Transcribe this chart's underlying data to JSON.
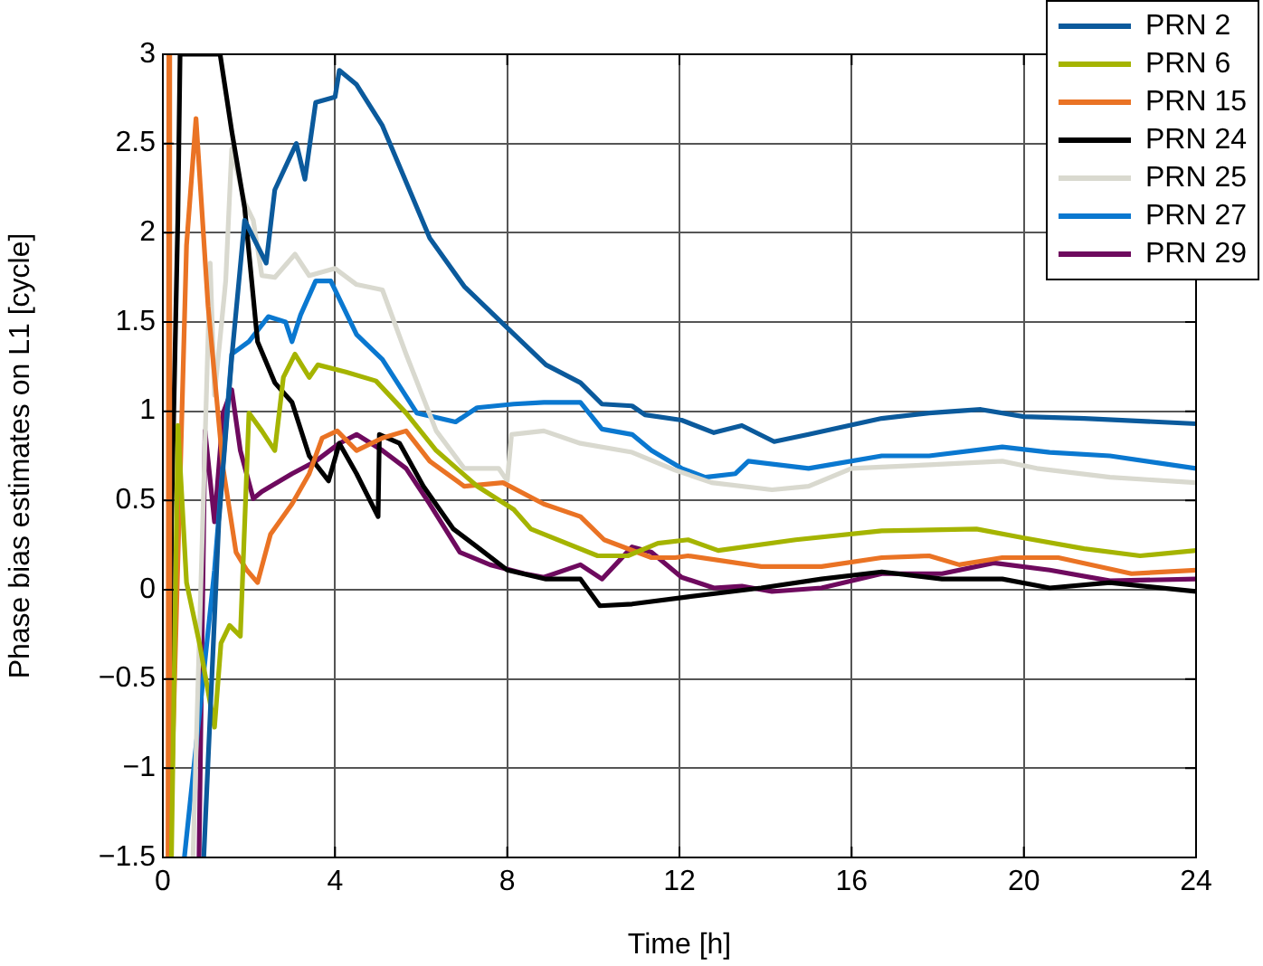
{
  "chart_data": {
    "type": "line",
    "xlabel": "Time [h]",
    "ylabel": "Phase bias estimates on L1 [cycle]",
    "xlim": [
      0,
      24
    ],
    "xticks": [
      0,
      4,
      8,
      12,
      16,
      20,
      24
    ],
    "ylim": [
      -1.5,
      3
    ],
    "yticks": [
      {
        "value": -1.5,
        "label": "−1.5"
      },
      {
        "value": -1,
        "label": "−1"
      },
      {
        "value": -0.5,
        "label": "−0.5"
      },
      0,
      0.5,
      1,
      1.5,
      2,
      2.5,
      3
    ],
    "grid": true,
    "legend": "top right",
    "marker": "none",
    "line_style": "solid",
    "series": [
      {
        "name": "PRN 2",
        "color": "#0b5a9c",
        "x": [
          0.95,
          1.3,
          1.6,
          1.9,
          2.4,
          2.6,
          3.1,
          3.3,
          3.55,
          4,
          4.1,
          4.5,
          5.1,
          6.2,
          7,
          7.9,
          8.9,
          9.7,
          10.2,
          10.9,
          11.2,
          12.05,
          12.8,
          13.45,
          14.2,
          15,
          16.7,
          17.8,
          19,
          20,
          21.4,
          24
        ],
        "values": [
          -1.5,
          0.38,
          1.3,
          2.07,
          1.83,
          2.24,
          2.5,
          2.3,
          2.73,
          2.76,
          2.91,
          2.83,
          2.6,
          1.97,
          1.7,
          1.49,
          1.26,
          1.16,
          1.04,
          1.03,
          0.98,
          0.95,
          0.88,
          0.92,
          0.83,
          0.87,
          0.96,
          0.99,
          1.01,
          0.97,
          0.96,
          0.93
        ]
      },
      {
        "name": "PRN 6",
        "color": "#a5b400",
        "x": [
          0.2,
          0.35,
          0.55,
          0.85,
          1.2,
          1.35,
          1.55,
          1.8,
          2.0,
          2.3,
          2.6,
          2.8,
          3.07,
          3.4,
          3.6,
          4.25,
          4.95,
          5.65,
          6.35,
          7.3,
          8.15,
          8.55,
          10.1,
          10.8,
          11.5,
          12.2,
          12.9,
          14.7,
          16.7,
          18.9,
          20,
          21.4,
          22.7,
          24
        ],
        "values": [
          -1.5,
          0.92,
          0.04,
          -0.3,
          -0.77,
          -0.3,
          -0.2,
          -0.26,
          0.99,
          0.89,
          0.78,
          1.19,
          1.32,
          1.19,
          1.26,
          1.22,
          1.17,
          0.99,
          0.78,
          0.58,
          0.45,
          0.34,
          0.19,
          0.19,
          0.26,
          0.28,
          0.22,
          0.28,
          0.33,
          0.34,
          0.29,
          0.23,
          0.19,
          0.22
        ]
      },
      {
        "name": "PRN 15",
        "color": "#ea7324",
        "x": [
          0.12,
          0.14,
          0.16,
          0.55,
          0.77,
          1.05,
          1.4,
          1.7,
          1.95,
          2.2,
          2.5,
          3,
          3.4,
          3.7,
          4.05,
          4.5,
          5.1,
          5.65,
          6.2,
          7,
          7.9,
          8.85,
          9.7,
          10.25,
          11.35,
          11.9,
          12.2,
          13.9,
          15.3,
          16.7,
          17.8,
          18.5,
          19.5,
          20.8,
          22.5,
          24
        ],
        "values": [
          -1.5,
          3,
          -1.5,
          1.93,
          2.64,
          1.59,
          0.68,
          0.21,
          0.11,
          0.04,
          0.31,
          0.48,
          0.65,
          0.85,
          0.89,
          0.78,
          0.85,
          0.89,
          0.72,
          0.58,
          0.6,
          0.48,
          0.41,
          0.28,
          0.18,
          0.18,
          0.19,
          0.13,
          0.13,
          0.18,
          0.19,
          0.14,
          0.18,
          0.18,
          0.09,
          0.11
        ]
      },
      {
        "name": "PRN 24",
        "color": "#000000",
        "x": [
          0.15,
          0.2,
          0.35,
          0.4,
          0.75,
          1.05,
          1.33,
          1.6,
          1.9,
          2.2,
          2.6,
          3,
          3.4,
          3.85,
          4.1,
          4.5,
          5.0,
          5.03,
          5.5,
          6.05,
          6.75,
          7.3,
          8,
          8.9,
          9.7,
          10.15,
          10.9,
          12.2,
          13.9,
          15.3,
          16.7,
          18.1,
          19.5,
          20.6,
          22,
          24
        ],
        "values": [
          -1.5,
          0.38,
          2.1,
          3,
          3,
          3,
          3,
          2.57,
          2.14,
          1.39,
          1.16,
          1.05,
          0.75,
          0.61,
          0.82,
          0.65,
          0.41,
          0.87,
          0.82,
          0.58,
          0.34,
          0.24,
          0.11,
          0.06,
          0.06,
          -0.09,
          -0.08,
          -0.04,
          0.01,
          0.06,
          0.1,
          0.06,
          0.06,
          0.01,
          0.04,
          -0.01
        ]
      },
      {
        "name": "PRN 25",
        "color": "#d9d9cf",
        "x": [
          0.7,
          1.1,
          1.2,
          1.46,
          1.6,
          1.9,
          2.1,
          2.3,
          2.6,
          3.07,
          3.4,
          4,
          4.5,
          5.1,
          5.65,
          6.35,
          7,
          7.8,
          8,
          8.1,
          8.85,
          9.7,
          10.9,
          11.9,
          12.75,
          14.15,
          15,
          16,
          17.8,
          19.5,
          20.3,
          22,
          24
        ],
        "values": [
          -1.5,
          1.83,
          1.09,
          1.73,
          2.47,
          2.17,
          2.07,
          1.76,
          1.75,
          1.88,
          1.76,
          1.8,
          1.71,
          1.68,
          1.32,
          0.89,
          0.68,
          0.68,
          0.61,
          0.87,
          0.89,
          0.82,
          0.77,
          0.67,
          0.6,
          0.56,
          0.58,
          0.68,
          0.7,
          0.72,
          0.68,
          0.63,
          0.6
        ]
      },
      {
        "name": "PRN 27",
        "color": "#0a78d0",
        "x": [
          0.5,
          1.2,
          1.6,
          2.0,
          2.45,
          2.85,
          3.0,
          3.2,
          3.55,
          3.9,
          4.1,
          4.5,
          5.1,
          5.9,
          6.8,
          7.3,
          8.15,
          8.85,
          9.7,
          10.2,
          10.9,
          11.35,
          12.05,
          12.6,
          13.3,
          13.6,
          15,
          16.7,
          17.8,
          19.5,
          20.6,
          22,
          24
        ],
        "values": [
          -1.5,
          0.11,
          1.32,
          1.39,
          1.53,
          1.5,
          1.39,
          1.54,
          1.73,
          1.73,
          1.63,
          1.43,
          1.29,
          0.99,
          0.94,
          1.02,
          1.04,
          1.05,
          1.05,
          0.9,
          0.87,
          0.78,
          0.68,
          0.63,
          0.65,
          0.72,
          0.68,
          0.75,
          0.75,
          0.8,
          0.77,
          0.75,
          0.68
        ]
      },
      {
        "name": "PRN 29",
        "color": "#6e0a5e",
        "x": [
          0.84,
          0.98,
          1.2,
          1.4,
          1.6,
          1.8,
          2.1,
          2.3,
          3,
          3.55,
          4.1,
          4.5,
          5.1,
          5.65,
          6.2,
          6.9,
          7.6,
          8.4,
          8.85,
          9.7,
          10.2,
          10.9,
          11.35,
          12.05,
          12.8,
          13.45,
          14.15,
          15.3,
          16.7,
          18.1,
          19.3,
          20.6,
          22,
          24
        ],
        "values": [
          -1.5,
          0.89,
          0.38,
          0.99,
          1.12,
          0.78,
          0.51,
          0.55,
          0.65,
          0.72,
          0.82,
          0.87,
          0.78,
          0.68,
          0.48,
          0.21,
          0.14,
          0.09,
          0.07,
          0.14,
          0.06,
          0.24,
          0.21,
          0.07,
          0.01,
          0.02,
          -0.01,
          0.01,
          0.09,
          0.09,
          0.15,
          0.11,
          0.05,
          0.06
        ]
      }
    ]
  }
}
